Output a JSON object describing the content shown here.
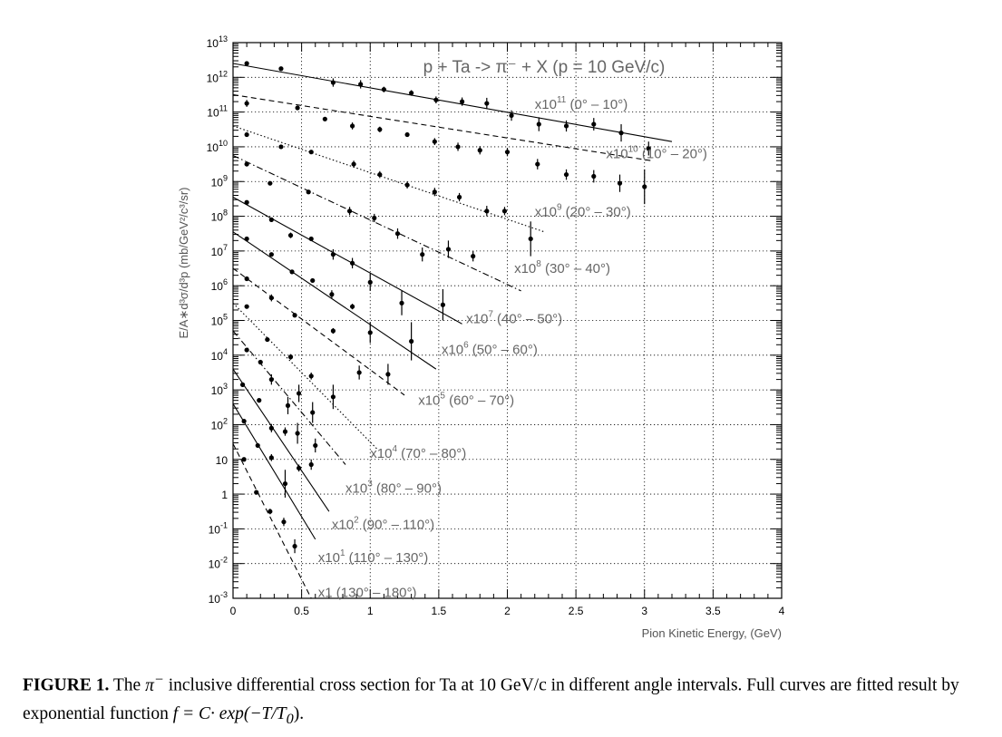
{
  "chart_data": {
    "type": "scatter",
    "title": "p + Ta -> π⁻ + X (p = 10 GeV/c)",
    "xlabel": "Pion Kinetic Energy, (GeV)",
    "ylabel": "E/A∗d³σ/d³p (mb/GeV²/c³/sr)",
    "xlim": [
      0,
      4
    ],
    "ylim": [
      -3,
      13
    ],
    "yscale": "log",
    "grid": true,
    "x_ticks": [
      "0",
      "0.5",
      "1",
      "1.5",
      "2",
      "2.5",
      "3",
      "3.5",
      "4"
    ],
    "y_ticks": [
      {
        "base": "10",
        "exp": "-3"
      },
      {
        "base": "10",
        "exp": "-2"
      },
      {
        "base": "10",
        "exp": "-1"
      },
      {
        "base": "1",
        "exp": ""
      },
      {
        "base": "10",
        "exp": ""
      },
      {
        "base": "10",
        "exp": "2"
      },
      {
        "base": "10",
        "exp": "3"
      },
      {
        "base": "10",
        "exp": "4"
      },
      {
        "base": "10",
        "exp": "5"
      },
      {
        "base": "10",
        "exp": "6"
      },
      {
        "base": "10",
        "exp": "7"
      },
      {
        "base": "10",
        "exp": "8"
      },
      {
        "base": "10",
        "exp": "9"
      },
      {
        "base": "10",
        "exp": "10"
      },
      {
        "base": "10",
        "exp": "11"
      },
      {
        "base": "10",
        "exp": "12"
      },
      {
        "base": "10",
        "exp": "13"
      }
    ],
    "series": [
      {
        "scale": "x10",
        "scale_exp": "11",
        "range": "(0° – 10°)",
        "label_x": 2.2,
        "label_y": 11.23,
        "line_style": "solid",
        "fit": {
          "x0": 0,
          "y0": 12.4,
          "x1": 3.2,
          "y1": 10.15
        },
        "points": [
          [
            0.1,
            12.4,
            0.03
          ],
          [
            0.35,
            12.25,
            0.03
          ],
          [
            0.73,
            11.85,
            0.12
          ],
          [
            0.93,
            11.8,
            0.12
          ],
          [
            1.1,
            11.65,
            0.08
          ],
          [
            1.3,
            11.55,
            0.08
          ],
          [
            1.48,
            11.35,
            0.1
          ],
          [
            1.67,
            11.3,
            0.12
          ],
          [
            1.85,
            11.25,
            0.16
          ],
          [
            2.03,
            10.9,
            0.15
          ],
          [
            2.23,
            10.65,
            0.2
          ],
          [
            2.43,
            10.6,
            0.16
          ],
          [
            2.63,
            10.65,
            0.18
          ],
          [
            2.83,
            10.4,
            0.25
          ],
          [
            3.03,
            9.95,
            0.2
          ]
        ]
      },
      {
        "scale": "x10",
        "scale_exp": "10",
        "range": "(10° – 20°)",
        "label_x": 2.72,
        "label_y": 9.8,
        "line_style": "dashed",
        "fit": {
          "x0": 0,
          "y0": 11.5,
          "x1": 3.05,
          "y1": 9.6
        },
        "points": [
          [
            0.1,
            11.25,
            0.1
          ],
          [
            0.47,
            11.12,
            0.05
          ],
          [
            0.67,
            10.8,
            0.05
          ],
          [
            0.87,
            10.6,
            0.1
          ],
          [
            1.07,
            10.5,
            0.08
          ],
          [
            1.27,
            10.35,
            0.06
          ],
          [
            1.47,
            10.15,
            0.1
          ],
          [
            1.64,
            10.0,
            0.12
          ],
          [
            1.8,
            9.9,
            0.12
          ],
          [
            2.0,
            9.85,
            0.12
          ],
          [
            2.22,
            9.5,
            0.15
          ],
          [
            2.43,
            9.2,
            0.15
          ],
          [
            2.63,
            9.15,
            0.18
          ],
          [
            2.82,
            8.95,
            0.25
          ],
          [
            3.0,
            8.85,
            0.5
          ]
        ]
      },
      {
        "scale": "x10",
        "scale_exp": "9",
        "range": "(20° – 30°)",
        "label_x": 2.2,
        "label_y": 8.13,
        "line_style": "dotted",
        "fit": {
          "x0": 0,
          "y0": 10.6,
          "x1": 2.27,
          "y1": 7.55
        },
        "points": [
          [
            0.1,
            10.35,
            0.03
          ],
          [
            0.35,
            10.0,
            0.03
          ],
          [
            0.57,
            9.85,
            0.03
          ],
          [
            0.88,
            9.5,
            0.1
          ],
          [
            1.07,
            9.2,
            0.1
          ],
          [
            1.27,
            8.9,
            0.1
          ],
          [
            1.47,
            8.7,
            0.12
          ],
          [
            1.65,
            8.55,
            0.12
          ],
          [
            1.85,
            8.15,
            0.15
          ],
          [
            1.98,
            8.15,
            0.12
          ],
          [
            2.17,
            7.35,
            0.5
          ]
        ]
      },
      {
        "scale": "x10",
        "scale_exp": "8",
        "range": "(30° – 40°)",
        "label_x": 2.05,
        "label_y": 6.5,
        "line_style": "dashdot",
        "fit": {
          "x0": 0,
          "y0": 9.75,
          "x1": 2.1,
          "y1": 5.85
        },
        "points": [
          [
            0.1,
            9.5,
            0.03
          ],
          [
            0.27,
            8.95,
            0.03
          ],
          [
            0.55,
            8.7,
            0.03
          ],
          [
            0.85,
            8.15,
            0.12
          ],
          [
            1.03,
            7.95,
            0.12
          ],
          [
            1.2,
            7.5,
            0.15
          ],
          [
            1.38,
            6.9,
            0.2
          ],
          [
            1.57,
            7.05,
            0.25
          ],
          [
            1.75,
            6.85,
            0.15
          ]
        ]
      },
      {
        "scale": "x10",
        "scale_exp": "7",
        "range": "(40° – 50°)",
        "label_x": 1.7,
        "label_y": 5.05,
        "line_style": "solid",
        "fit": {
          "x0": 0,
          "y0": 8.55,
          "x1": 1.67,
          "y1": 4.9
        },
        "points": [
          [
            0.1,
            8.4,
            0.03
          ],
          [
            0.28,
            7.9,
            0.03
          ],
          [
            0.42,
            7.45,
            0.08
          ],
          [
            0.57,
            7.35,
            0.03
          ],
          [
            0.73,
            6.9,
            0.15
          ],
          [
            0.87,
            6.65,
            0.15
          ],
          [
            1.0,
            6.1,
            0.25
          ],
          [
            1.23,
            5.5,
            0.35
          ],
          [
            1.53,
            5.45,
            0.45
          ]
        ]
      },
      {
        "scale": "x10",
        "scale_exp": "6",
        "range": "(50° – 60°)",
        "label_x": 1.52,
        "label_y": 4.17,
        "line_style": "solid",
        "fit": {
          "x0": 0,
          "y0": 7.55,
          "x1": 1.48,
          "y1": 3.6
        },
        "points": [
          [
            0.1,
            7.35,
            0.03
          ],
          [
            0.28,
            6.9,
            0.03
          ],
          [
            0.43,
            6.4,
            0.03
          ],
          [
            0.58,
            6.15,
            0.03
          ],
          [
            0.72,
            5.75,
            0.12
          ],
          [
            0.87,
            5.4,
            0.08
          ],
          [
            1.0,
            4.65,
            0.3
          ],
          [
            1.3,
            4.4,
            0.55
          ]
        ]
      },
      {
        "scale": "x10",
        "scale_exp": "5",
        "range": "(60° – 70°)",
        "label_x": 1.35,
        "label_y": 2.7,
        "line_style": "dashed",
        "fit": {
          "x0": 0,
          "y0": 6.5,
          "x1": 1.25,
          "y1": 2.85
        },
        "points": [
          [
            0.1,
            6.2,
            0.03
          ],
          [
            0.28,
            5.65,
            0.1
          ],
          [
            0.45,
            5.15,
            0.03
          ],
          [
            0.73,
            4.7,
            0.08
          ],
          [
            0.92,
            3.5,
            0.2
          ],
          [
            1.13,
            3.45,
            0.3
          ]
        ]
      },
      {
        "scale": "x10",
        "scale_exp": "4",
        "range": "(70° – 80°)",
        "label_x": 1.0,
        "label_y": 1.17,
        "line_style": "dotted",
        "fit": {
          "x0": 0,
          "y0": 5.5,
          "x1": 1.05,
          "y1": 1.3
        },
        "points": [
          [
            0.1,
            5.4,
            0.03
          ],
          [
            0.25,
            4.45,
            0.03
          ],
          [
            0.42,
            3.95,
            0.08
          ],
          [
            0.57,
            3.4,
            0.1
          ],
          [
            0.73,
            2.8,
            0.35
          ]
        ]
      },
      {
        "scale": "x10",
        "scale_exp": "3",
        "range": "(80° – 90°)",
        "label_x": 0.82,
        "label_y": 0.17,
        "line_style": "dashdot",
        "fit": {
          "x0": 0,
          "y0": 4.7,
          "x1": 0.82,
          "y1": 0.85
        },
        "points": [
          [
            0.1,
            4.15,
            0.03
          ],
          [
            0.2,
            3.8,
            0.03
          ],
          [
            0.28,
            3.3,
            0.15
          ],
          [
            0.4,
            2.55,
            0.25
          ],
          [
            0.48,
            2.9,
            0.25
          ],
          [
            0.58,
            2.35,
            0.3
          ]
        ]
      },
      {
        "scale": "x10",
        "scale_exp": "2",
        "range": "(90° – 110°)",
        "label_x": 0.72,
        "label_y": -0.87,
        "line_style": "solid",
        "fit": {
          "x0": 0,
          "y0": 3.6,
          "x1": 0.7,
          "y1": -0.5
        },
        "points": [
          [
            0.07,
            3.15,
            0.03
          ],
          [
            0.19,
            2.7,
            0.03
          ],
          [
            0.28,
            1.9,
            0.12
          ],
          [
            0.38,
            1.8,
            0.12
          ],
          [
            0.47,
            1.75,
            0.3
          ],
          [
            0.6,
            1.4,
            0.2
          ]
        ]
      },
      {
        "scale": "x10",
        "scale_exp": "1",
        "range": "(110° – 130°)",
        "label_x": 0.62,
        "label_y": -1.83,
        "line_style": "solid",
        "fit": {
          "x0": 0,
          "y0": 2.6,
          "x1": 0.6,
          "y1": -1.3
        },
        "points": [
          [
            0.08,
            2.1,
            0.03
          ],
          [
            0.18,
            1.4,
            0.03
          ],
          [
            0.28,
            1.05,
            0.1
          ],
          [
            0.38,
            0.3,
            0.4
          ],
          [
            0.48,
            0.75,
            0.1
          ],
          [
            0.57,
            0.85,
            0.15
          ]
        ]
      },
      {
        "scale": "x1",
        "scale_exp": "",
        "range": "(130° – 180°)",
        "label_x": 0.62,
        "label_y": -2.83,
        "line_style": "dashed",
        "fit": {
          "x0": 0,
          "y0": 1.45,
          "x1": 0.57,
          "y1": -3.0
        },
        "points": [
          [
            0.08,
            1.0,
            0.03
          ],
          [
            0.17,
            0.05,
            0.03
          ],
          [
            0.27,
            -0.5,
            0.08
          ],
          [
            0.37,
            -0.8,
            0.12
          ],
          [
            0.45,
            -1.5,
            0.2
          ]
        ]
      }
    ]
  },
  "caption": {
    "lead": "FIGURE 1.",
    "text_1": "The",
    "pi": "π",
    "minus": "−",
    "text_2": "inclusive differential cross section for Ta at 10 GeV/c in different angle intervals. Full curves are fitted result by exponential function",
    "formula": "f = C· exp(−T/T",
    "formula_sub": "0",
    "formula_end": ")."
  }
}
